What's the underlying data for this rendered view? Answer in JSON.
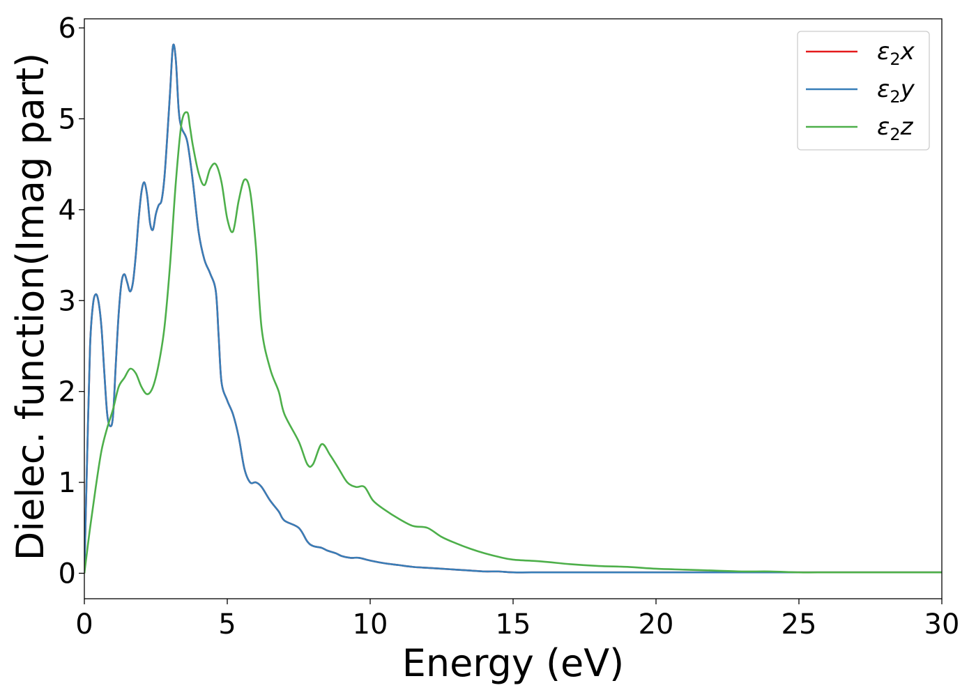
{
  "chart_data": {
    "type": "line",
    "title": "",
    "xlabel": "Energy (eV)",
    "ylabel": "Dielec. function(Imag part)",
    "xlim": [
      0,
      30
    ],
    "ylim": [
      -0.28,
      6.1
    ],
    "xticks": [
      0,
      5,
      10,
      15,
      20,
      25,
      30
    ],
    "yticks": [
      0,
      1,
      2,
      3,
      4,
      5,
      6
    ],
    "grid": false,
    "legend_position": "top-right",
    "legend": [
      {
        "base": "ε",
        "sub": "2",
        "var": "x"
      },
      {
        "base": "ε",
        "sub": "2",
        "var": "y"
      },
      {
        "base": "ε",
        "sub": "2",
        "var": "z"
      }
    ],
    "series": [
      {
        "name": "ε2x",
        "color": "#e41a1c",
        "x": [
          0,
          0.1,
          0.2,
          0.3,
          0.4,
          0.5,
          0.6,
          0.7,
          0.8,
          0.9,
          1.0,
          1.1,
          1.2,
          1.3,
          1.4,
          1.5,
          1.6,
          1.7,
          1.8,
          1.9,
          2.0,
          2.1,
          2.2,
          2.3,
          2.4,
          2.5,
          2.6,
          2.7,
          2.8,
          2.9,
          3.0,
          3.1,
          3.2,
          3.3,
          3.4,
          3.6,
          3.8,
          4.0,
          4.2,
          4.4,
          4.6,
          4.7,
          4.8,
          5.0,
          5.2,
          5.4,
          5.6,
          5.8,
          6.0,
          6.2,
          6.5,
          6.8,
          7.0,
          7.5,
          7.8,
          8.0,
          8.3,
          8.5,
          8.8,
          9.0,
          9.3,
          9.6,
          10.0,
          10.5,
          11.0,
          11.5,
          12.0,
          12.5,
          13.0,
          13.5,
          14.0,
          14.5,
          15.0,
          16.0,
          17.0,
          18.0,
          19.0,
          20.0,
          21.0,
          22.0,
          23.0,
          24.0,
          25.0,
          26.0,
          27.0,
          28.0,
          29.0,
          30.0
        ],
        "values": [
          0,
          1.3,
          2.5,
          2.95,
          3.07,
          2.98,
          2.7,
          2.2,
          1.75,
          1.62,
          1.72,
          2.3,
          2.85,
          3.2,
          3.29,
          3.2,
          3.1,
          3.2,
          3.5,
          3.9,
          4.2,
          4.3,
          4.15,
          3.85,
          3.78,
          3.95,
          4.05,
          4.1,
          4.35,
          4.8,
          5.3,
          5.8,
          5.65,
          5.1,
          4.9,
          4.75,
          4.3,
          3.75,
          3.45,
          3.3,
          3.1,
          2.6,
          2.1,
          1.9,
          1.75,
          1.5,
          1.15,
          1.0,
          1.0,
          0.95,
          0.8,
          0.68,
          0.58,
          0.5,
          0.35,
          0.3,
          0.28,
          0.25,
          0.22,
          0.19,
          0.17,
          0.17,
          0.14,
          0.11,
          0.09,
          0.07,
          0.06,
          0.05,
          0.04,
          0.03,
          0.02,
          0.02,
          0.01,
          0.01,
          0.01,
          0.01,
          0.01,
          0.01,
          0.01,
          0.01,
          0.01,
          0.01,
          0.01,
          0.01,
          0.01,
          0.01,
          0.01,
          0.01
        ]
      },
      {
        "name": "ε2y",
        "color": "#377eb8",
        "x": [
          0,
          0.1,
          0.2,
          0.3,
          0.4,
          0.5,
          0.6,
          0.7,
          0.8,
          0.9,
          1.0,
          1.1,
          1.2,
          1.3,
          1.4,
          1.5,
          1.6,
          1.7,
          1.8,
          1.9,
          2.0,
          2.1,
          2.2,
          2.3,
          2.4,
          2.5,
          2.6,
          2.7,
          2.8,
          2.9,
          3.0,
          3.1,
          3.2,
          3.3,
          3.4,
          3.6,
          3.8,
          4.0,
          4.2,
          4.4,
          4.6,
          4.7,
          4.8,
          5.0,
          5.2,
          5.4,
          5.6,
          5.8,
          6.0,
          6.2,
          6.5,
          6.8,
          7.0,
          7.5,
          7.8,
          8.0,
          8.3,
          8.5,
          8.8,
          9.0,
          9.3,
          9.6,
          10.0,
          10.5,
          11.0,
          11.5,
          12.0,
          12.5,
          13.0,
          13.5,
          14.0,
          14.5,
          15.0,
          16.0,
          17.0,
          18.0,
          19.0,
          20.0,
          21.0,
          22.0,
          23.0,
          24.0,
          25.0,
          26.0,
          27.0,
          28.0,
          29.0,
          30.0
        ],
        "values": [
          0,
          1.3,
          2.5,
          2.95,
          3.07,
          2.98,
          2.7,
          2.2,
          1.75,
          1.62,
          1.72,
          2.3,
          2.85,
          3.2,
          3.29,
          3.2,
          3.1,
          3.2,
          3.5,
          3.9,
          4.2,
          4.3,
          4.15,
          3.85,
          3.78,
          3.95,
          4.05,
          4.1,
          4.35,
          4.8,
          5.3,
          5.8,
          5.65,
          5.1,
          4.9,
          4.75,
          4.3,
          3.75,
          3.45,
          3.3,
          3.1,
          2.6,
          2.1,
          1.9,
          1.75,
          1.5,
          1.15,
          1.0,
          1.0,
          0.95,
          0.8,
          0.68,
          0.58,
          0.5,
          0.35,
          0.3,
          0.28,
          0.25,
          0.22,
          0.19,
          0.17,
          0.17,
          0.14,
          0.11,
          0.09,
          0.07,
          0.06,
          0.05,
          0.04,
          0.03,
          0.02,
          0.02,
          0.01,
          0.01,
          0.01,
          0.01,
          0.01,
          0.01,
          0.01,
          0.01,
          0.01,
          0.01,
          0.01,
          0.01,
          0.01,
          0.01,
          0.01,
          0.01
        ]
      },
      {
        "name": "ε2z",
        "color": "#4daf4a",
        "x": [
          0,
          0.2,
          0.4,
          0.6,
          0.8,
          1.0,
          1.2,
          1.4,
          1.6,
          1.8,
          2.0,
          2.2,
          2.4,
          2.6,
          2.8,
          3.0,
          3.2,
          3.4,
          3.6,
          3.7,
          3.8,
          4.0,
          4.2,
          4.4,
          4.6,
          4.8,
          5.0,
          5.2,
          5.4,
          5.6,
          5.8,
          6.0,
          6.2,
          6.5,
          6.8,
          7.0,
          7.5,
          7.8,
          8.0,
          8.3,
          8.6,
          8.9,
          9.2,
          9.5,
          9.8,
          10.1,
          10.5,
          11.0,
          11.5,
          12.0,
          12.5,
          13.0,
          13.5,
          14.0,
          14.5,
          15.0,
          16.0,
          17.0,
          18.0,
          19.0,
          20.0,
          21.0,
          22.0,
          23.0,
          24.0,
          25.0,
          26.0,
          27.0,
          28.0,
          29.0,
          30.0
        ],
        "values": [
          0,
          0.5,
          0.95,
          1.35,
          1.6,
          1.8,
          2.05,
          2.15,
          2.25,
          2.2,
          2.05,
          1.97,
          2.05,
          2.3,
          2.7,
          3.4,
          4.3,
          4.95,
          5.07,
          4.9,
          4.7,
          4.4,
          4.27,
          4.45,
          4.5,
          4.3,
          3.9,
          3.76,
          4.1,
          4.33,
          4.2,
          3.6,
          2.7,
          2.25,
          2.0,
          1.75,
          1.45,
          1.2,
          1.2,
          1.42,
          1.3,
          1.15,
          1.0,
          0.95,
          0.95,
          0.8,
          0.7,
          0.6,
          0.52,
          0.5,
          0.4,
          0.33,
          0.27,
          0.22,
          0.18,
          0.15,
          0.13,
          0.1,
          0.08,
          0.07,
          0.05,
          0.04,
          0.03,
          0.02,
          0.02,
          0.01,
          0.01,
          0.01,
          0.01,
          0.01,
          0.01
        ]
      }
    ]
  }
}
